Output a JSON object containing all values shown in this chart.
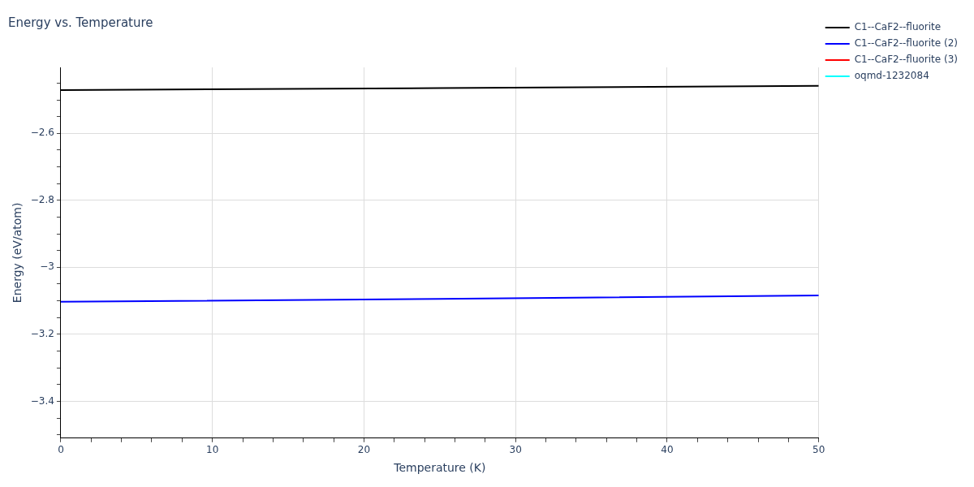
{
  "chart_data": {
    "type": "line",
    "title": "Energy vs. Temperature",
    "xlabel": "Temperature (K)",
    "ylabel": "Energy (eV/atom)",
    "x": [
      0,
      25,
      50
    ],
    "series": [
      {
        "name": "C1--CaF2--fluorite",
        "color": "#000000",
        "values": [
          -2.471,
          -2.465,
          -2.458
        ]
      },
      {
        "name": "C1--CaF2--fluorite (2)",
        "color": "#0000ff",
        "values": [
          -3.103,
          -3.094,
          -3.084
        ]
      },
      {
        "name": "C1--CaF2--fluorite (3)",
        "color": "#ff0000",
        "values": [
          null,
          null,
          null
        ]
      },
      {
        "name": "oqmd-1232084",
        "color": "#00ffff",
        "values": [
          null,
          null,
          null
        ]
      }
    ],
    "xlim": [
      0,
      50
    ],
    "ylim": [
      -3.51,
      -2.403
    ],
    "xticks": [
      0,
      {
        "value": 2,
        "label": null
      },
      {
        "value": 4,
        "label": null
      },
      {
        "value": 6,
        "label": null
      },
      {
        "value": 8,
        "label": null
      },
      10,
      {
        "value": 12,
        "label": null
      },
      {
        "value": 14,
        "label": null
      },
      {
        "value": 16,
        "label": null
      },
      {
        "value": 18,
        "label": null
      },
      20,
      {
        "value": 22,
        "label": null
      },
      {
        "value": 24,
        "label": null
      },
      {
        "value": 26,
        "label": null
      },
      {
        "value": 28,
        "label": null
      },
      30,
      {
        "value": 32,
        "label": null
      },
      {
        "value": 34,
        "label": null
      },
      {
        "value": 36,
        "label": null
      },
      {
        "value": 38,
        "label": null
      },
      40,
      {
        "value": 42,
        "label": null
      },
      {
        "value": 44,
        "label": null
      },
      {
        "value": 46,
        "label": null
      },
      {
        "value": 48,
        "label": null
      },
      50
    ],
    "yticks": [
      {
        "value": -3.5,
        "label": null
      },
      {
        "value": -3.45,
        "label": null
      },
      {
        "value": -3.4,
        "label": "−3.4"
      },
      {
        "value": -3.35,
        "label": null
      },
      {
        "value": -3.3,
        "label": null
      },
      {
        "value": -3.25,
        "label": null
      },
      {
        "value": -3.2,
        "label": "−3.2"
      },
      {
        "value": -3.15,
        "label": null
      },
      {
        "value": -3.1,
        "label": null
      },
      {
        "value": -3.05,
        "label": null
      },
      {
        "value": -3,
        "label": "−3"
      },
      {
        "value": -2.95,
        "label": null
      },
      {
        "value": -2.9,
        "label": null
      },
      {
        "value": -2.85,
        "label": null
      },
      {
        "value": -2.8,
        "label": "−2.8"
      },
      {
        "value": -2.75,
        "label": null
      },
      {
        "value": -2.7,
        "label": null
      },
      {
        "value": -2.65,
        "label": null
      },
      {
        "value": -2.6,
        "label": "−2.6"
      },
      {
        "value": -2.55,
        "label": null
      },
      {
        "value": -2.5,
        "label": null
      },
      {
        "value": -2.45,
        "label": null
      }
    ],
    "grid": true,
    "legend": "top right",
    "marker": "none",
    "line_style": "solid"
  }
}
